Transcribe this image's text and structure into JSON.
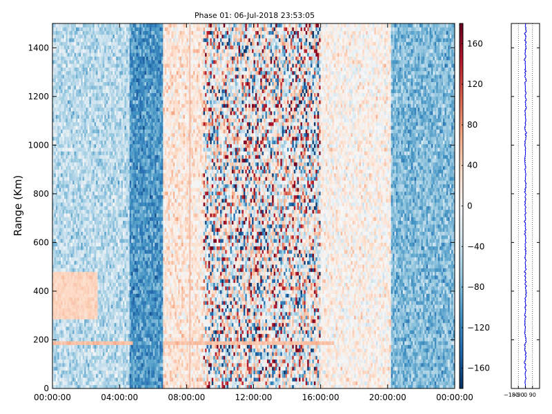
{
  "chart_data": [
    {
      "type": "heatmap",
      "title": "Phase 01: 06-Jul-2018 23:53:05",
      "xlabel": "",
      "ylabel": "Range (Km)",
      "x_tick_labels": [
        "00:00:00",
        "04:00:00",
        "08:00:00",
        "12:00:00",
        "16:00:00",
        "20:00:00",
        "00:00:00"
      ],
      "xlim_hours": [
        0,
        24
      ],
      "ylim": [
        0,
        1500
      ],
      "y_ticks": [
        0,
        200,
        400,
        600,
        800,
        1000,
        1200,
        1400
      ],
      "colorbar": {
        "vmin": -180,
        "vmax": 180,
        "ticks": [
          160,
          120,
          80,
          40,
          0,
          -40,
          -80,
          -120,
          -160
        ],
        "colormap": "RdBu_r"
      },
      "grid": false,
      "features": [
        {
          "x_hours_range": [
            0,
            6.6
          ],
          "value_deg": -55
        },
        {
          "x_hours_range": [
            4.6,
            6.4
          ],
          "value_deg": -110
        },
        {
          "x_hours_range": [
            6.6,
            9.0
          ],
          "value_deg": 25
        },
        {
          "x_hours_range": [
            9.0,
            16.0
          ],
          "value_deg": "noisy (-180..180)"
        },
        {
          "x_hours_range": [
            16.0,
            20.2
          ],
          "value_deg": 10
        },
        {
          "x_hours_range": [
            20.2,
            24
          ],
          "value_deg": -75
        },
        {
          "y_range": [
            180,
            200
          ],
          "value_deg": 55
        },
        {
          "y_range": [
            280,
            480
          ],
          "x_hours_range": [
            0,
            2.7
          ],
          "value_deg": 40
        }
      ],
      "vertical_line_hours": 8.2
    },
    {
      "type": "line",
      "description_axis": "phase profile vs range",
      "x_tick_labels": [
        "−180",
        "−90",
        "0",
        "90"
      ],
      "xlim": [
        -180,
        180
      ],
      "ylim": [
        0,
        1500
      ],
      "series_color": "#0000ff",
      "series_center": 0,
      "series_spread": 12,
      "grid": "x-dotted"
    }
  ],
  "colors": {
    "low": "#053061",
    "mid": "#f7f7f7",
    "high": "#67001f"
  }
}
